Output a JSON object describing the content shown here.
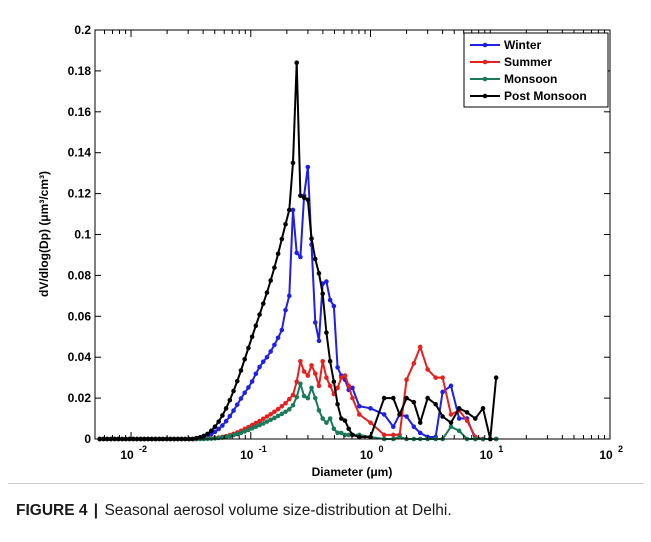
{
  "caption": {
    "label": "FIGURE 4",
    "separator": "|",
    "text": "Seasonal aerosol volume size-distribution at Delhi."
  },
  "chart_data": {
    "type": "line",
    "xlabel": "Diameter (μm)",
    "ylabel": "dV/dlog(Dp) (μm³/cm³)",
    "xscale": "log",
    "xlim": [
      0.005,
      100
    ],
    "ylim": [
      0,
      0.2
    ],
    "xticks": [
      {
        "value": 0.01,
        "base": "10",
        "exp": "-2"
      },
      {
        "value": 0.1,
        "base": "10",
        "exp": "-1"
      },
      {
        "value": 1,
        "base": "10",
        "exp": "0"
      },
      {
        "value": 10,
        "base": "10",
        "exp": "1"
      },
      {
        "value": 100,
        "base": "10",
        "exp": "2"
      }
    ],
    "yticks": [
      "0",
      "0.02",
      "0.04",
      "0.06",
      "0.08",
      "0.1",
      "0.12",
      "0.14",
      "0.16",
      "0.18",
      "0.2"
    ],
    "grid": false,
    "legend_position": "top-right",
    "series": [
      {
        "name": "Winter",
        "color": "#1f1fe6",
        "x": [
          0.00548,
          0.00589,
          0.00632,
          0.00679,
          0.0073,
          0.00784,
          0.00842,
          0.00904,
          0.00971,
          0.01043,
          0.0112,
          0.01203,
          0.01292,
          0.01388,
          0.01491,
          0.01601,
          0.0172,
          0.01847,
          0.01984,
          0.02131,
          0.02289,
          0.02458,
          0.0264,
          0.02836,
          0.03046,
          0.03271,
          0.03513,
          0.03774,
          0.04053,
          0.04353,
          0.04675,
          0.05022,
          0.05394,
          0.05793,
          0.06222,
          0.06683,
          0.07178,
          0.0771,
          0.0828,
          0.08894,
          0.09552,
          0.1026,
          0.1102,
          0.1184,
          0.1271,
          0.1365,
          0.1466,
          0.1575,
          0.1692,
          0.1817,
          0.1951,
          0.2096,
          0.2251,
          0.2418,
          0.2597,
          0.2789,
          0.2996,
          0.3217,
          0.3456,
          0.3711,
          0.3987,
          0.4282,
          0.46,
          0.4941,
          0.5307,
          0.57,
          0.6122,
          0.6576,
          0.7063,
          0.806,
          1.0,
          1.3,
          1.55,
          1.75,
          2.0,
          2.3,
          2.6,
          3.0,
          3.5,
          4.0,
          4.7,
          5.5,
          6.4,
          7.5,
          8.7,
          10.0,
          11.2
        ],
        "y": [
          0,
          0,
          0,
          0,
          0,
          0,
          0,
          0,
          0,
          0,
          0,
          0,
          0,
          0,
          0,
          0,
          0,
          0,
          0,
          0,
          0,
          0,
          0,
          0,
          0,
          0,
          0.0003,
          0.0006,
          0.001,
          0.0016,
          0.0024,
          0.0035,
          0.0049,
          0.0066,
          0.0087,
          0.0111,
          0.0139,
          0.0168,
          0.0198,
          0.0226,
          0.0252,
          0.0281,
          0.0319,
          0.0352,
          0.0378,
          0.04,
          0.0428,
          0.046,
          0.0495,
          0.0533,
          0.063,
          0.07,
          0.112,
          0.091,
          0.089,
          0.119,
          0.133,
          0.095,
          0.057,
          0.048,
          0.076,
          0.077,
          0.068,
          0.065,
          0.035,
          0.031,
          0.029,
          0.024,
          0.025,
          0.016,
          0.015,
          0.012,
          0.006,
          0.012,
          0.011,
          0.006,
          0.003,
          0.001,
          0.001,
          0.023,
          0.026,
          0.01,
          0.01,
          0.0,
          0.0,
          0.0,
          0.0
        ]
      },
      {
        "name": "Summer",
        "color": "#e61f1f",
        "x": [
          0.00548,
          0.00589,
          0.00632,
          0.00679,
          0.0073,
          0.00784,
          0.00842,
          0.00904,
          0.00971,
          0.01043,
          0.0112,
          0.01203,
          0.01292,
          0.01388,
          0.01491,
          0.01601,
          0.0172,
          0.01847,
          0.01984,
          0.02131,
          0.02289,
          0.02458,
          0.0264,
          0.02836,
          0.03046,
          0.03271,
          0.03513,
          0.03774,
          0.04053,
          0.04353,
          0.04675,
          0.05022,
          0.05394,
          0.05793,
          0.06222,
          0.06683,
          0.07178,
          0.0771,
          0.0828,
          0.08894,
          0.09552,
          0.1026,
          0.1102,
          0.1184,
          0.1271,
          0.1365,
          0.1466,
          0.1575,
          0.1692,
          0.1817,
          0.1951,
          0.2096,
          0.2251,
          0.2418,
          0.2597,
          0.2789,
          0.2996,
          0.3217,
          0.3456,
          0.3711,
          0.3987,
          0.4282,
          0.46,
          0.4941,
          0.5307,
          0.57,
          0.6122,
          0.6576,
          0.7063,
          0.806,
          1.0,
          1.3,
          1.55,
          1.75,
          2.0,
          2.3,
          2.6,
          3.0,
          3.5,
          4.0,
          4.7,
          5.5,
          6.4,
          7.5,
          8.7,
          10.0,
          11.2
        ],
        "y": [
          0,
          0,
          0,
          0,
          0,
          0,
          0,
          0,
          0,
          0,
          0,
          0,
          0,
          0,
          0,
          0,
          0,
          0,
          0,
          0,
          0,
          0,
          0,
          0,
          0,
          0,
          0,
          0,
          0.0001,
          0.0002,
          0.0003,
          0.0005,
          0.0007,
          0.001,
          0.0014,
          0.0019,
          0.0025,
          0.0032,
          0.004,
          0.0049,
          0.0058,
          0.0068,
          0.0078,
          0.0088,
          0.0099,
          0.011,
          0.0121,
          0.0133,
          0.0146,
          0.016,
          0.0175,
          0.0195,
          0.0215,
          0.028,
          0.038,
          0.033,
          0.031,
          0.036,
          0.032,
          0.026,
          0.038,
          0.03,
          0.026,
          0.022,
          0.025,
          0.03,
          0.031,
          0.026,
          0.02,
          0.012,
          0.008,
          0.002,
          0.002,
          0.002,
          0.029,
          0.037,
          0.045,
          0.034,
          0.03,
          0.03,
          0.012,
          0.014,
          0.009,
          0.001,
          0.0,
          0.0,
          0.0
        ]
      },
      {
        "name": "Monsoon",
        "color": "#1a7a5a",
        "x": [
          0.00548,
          0.00589,
          0.00632,
          0.00679,
          0.0073,
          0.00784,
          0.00842,
          0.00904,
          0.00971,
          0.01043,
          0.0112,
          0.01203,
          0.01292,
          0.01388,
          0.01491,
          0.01601,
          0.0172,
          0.01847,
          0.01984,
          0.02131,
          0.02289,
          0.02458,
          0.0264,
          0.02836,
          0.03046,
          0.03271,
          0.03513,
          0.03774,
          0.04053,
          0.04353,
          0.04675,
          0.05022,
          0.05394,
          0.05793,
          0.06222,
          0.06683,
          0.07178,
          0.0771,
          0.0828,
          0.08894,
          0.09552,
          0.1026,
          0.1102,
          0.1184,
          0.1271,
          0.1365,
          0.1466,
          0.1575,
          0.1692,
          0.1817,
          0.1951,
          0.2096,
          0.2251,
          0.2418,
          0.2597,
          0.2789,
          0.2996,
          0.3217,
          0.3456,
          0.3711,
          0.3987,
          0.4282,
          0.46,
          0.4941,
          0.5307,
          0.57,
          0.6122,
          0.6576,
          0.7063,
          0.806,
          1.0,
          1.3,
          1.55,
          1.75,
          2.0,
          2.3,
          2.6,
          3.0,
          3.5,
          4.0,
          4.7,
          5.5,
          6.4,
          7.5,
          8.7,
          10.0,
          11.2
        ],
        "y": [
          0,
          0,
          0,
          0,
          0,
          0,
          0,
          0,
          0,
          0,
          0,
          0,
          0,
          0,
          0,
          0,
          0,
          0,
          0,
          0,
          0,
          0,
          0,
          0,
          0,
          0,
          0,
          0,
          0,
          0.0001,
          0.0002,
          0.0003,
          0.0005,
          0.0007,
          0.001,
          0.0014,
          0.0019,
          0.0024,
          0.003,
          0.0037,
          0.0044,
          0.0052,
          0.006,
          0.0068,
          0.0076,
          0.0085,
          0.0094,
          0.0103,
          0.0113,
          0.0123,
          0.0133,
          0.0145,
          0.0165,
          0.0205,
          0.027,
          0.021,
          0.02,
          0.025,
          0.02,
          0.014,
          0.01,
          0.008,
          0.01,
          0.005,
          0.003,
          0.003,
          0.002,
          0.002,
          0.002,
          0.002,
          0.001,
          0.0,
          0.0,
          0.001,
          0.0,
          0.0,
          0.0,
          0.0,
          0.0,
          0.0,
          0.006,
          0.004,
          0.0,
          0.0,
          0.0,
          0.0,
          0.0
        ]
      },
      {
        "name": "Post Monsoon",
        "color": "#000000",
        "x": [
          0.00548,
          0.00589,
          0.00632,
          0.00679,
          0.0073,
          0.00784,
          0.00842,
          0.00904,
          0.00971,
          0.01043,
          0.0112,
          0.01203,
          0.01292,
          0.01388,
          0.01491,
          0.01601,
          0.0172,
          0.01847,
          0.01984,
          0.02131,
          0.02289,
          0.02458,
          0.0264,
          0.02836,
          0.03046,
          0.03271,
          0.03513,
          0.03774,
          0.04053,
          0.04353,
          0.04675,
          0.05022,
          0.05394,
          0.05793,
          0.06222,
          0.06683,
          0.07178,
          0.0771,
          0.0828,
          0.08894,
          0.09552,
          0.1026,
          0.1102,
          0.1184,
          0.1271,
          0.1365,
          0.1466,
          0.1575,
          0.1692,
          0.1817,
          0.1951,
          0.2096,
          0.2251,
          0.2418,
          0.2597,
          0.2789,
          0.2996,
          0.3217,
          0.3456,
          0.3711,
          0.3987,
          0.4282,
          0.46,
          0.4941,
          0.5307,
          0.57,
          0.6122,
          0.6576,
          0.7063,
          0.806,
          1.0,
          1.3,
          1.55,
          1.75,
          2.0,
          2.3,
          2.6,
          3.0,
          3.5,
          4.0,
          4.7,
          5.5,
          6.4,
          7.5,
          8.7,
          10.0,
          11.2
        ],
        "y": [
          0,
          0,
          0,
          0,
          0,
          0,
          0,
          0,
          0,
          0,
          0,
          0,
          0,
          0,
          0,
          0,
          0,
          0,
          0,
          0,
          0,
          0,
          0,
          0,
          0,
          0,
          0.0004,
          0.0008,
          0.0015,
          0.0025,
          0.004,
          0.006,
          0.0085,
          0.0115,
          0.015,
          0.019,
          0.0235,
          0.0283,
          0.0335,
          0.039,
          0.0445,
          0.05,
          0.0554,
          0.0608,
          0.0662,
          0.0716,
          0.0775,
          0.0838,
          0.0906,
          0.0978,
          0.105,
          0.112,
          0.135,
          0.184,
          0.119,
          0.118,
          0.117,
          0.098,
          0.088,
          0.081,
          0.071,
          0.052,
          0.038,
          0.028,
          0.017,
          0.01,
          0.009,
          0.005,
          0.002,
          0.001,
          0.001,
          0.02,
          0.02,
          0.012,
          0.02,
          0.018,
          0.008,
          0.02,
          0.017,
          0.011,
          0.008,
          0.015,
          0.013,
          0.01,
          0.015,
          0.0,
          0.03
        ]
      }
    ]
  }
}
